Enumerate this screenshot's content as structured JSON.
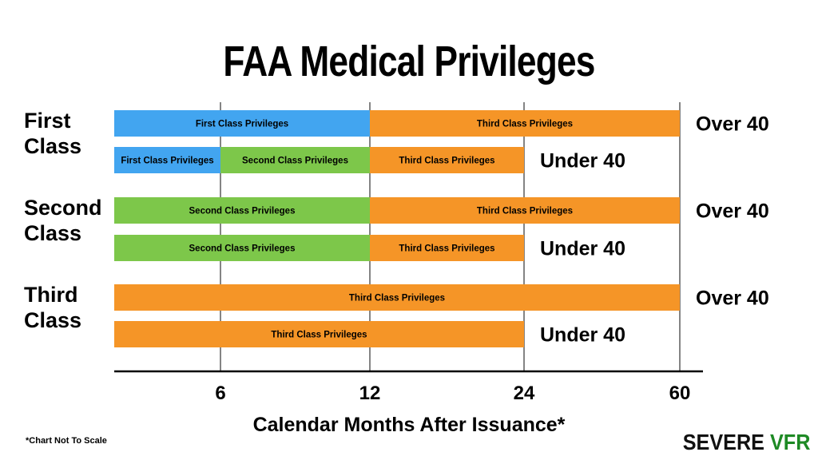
{
  "title": "FAA Medical Privileges",
  "footnote": "*Chart Not To Scale",
  "brand": {
    "part1": "SEVERE",
    "part2": "VFR",
    "color1": "#111111",
    "color2": "#1e8a25"
  },
  "chart_data": {
    "type": "bar",
    "orientation": "horizontal-stacked",
    "xlabel": "Calendar Months After Issuance*",
    "x_ticks": [
      6,
      12,
      24,
      60
    ],
    "x_scale": "not to scale (ordinal breakpoints)",
    "grid": true,
    "colors": {
      "First Class Privileges": "#42a5f0",
      "Second Class Privileges": "#7dc74a",
      "Third Class Privileges": "#f59527"
    },
    "groups": [
      {
        "label_lines": [
          "First",
          "Class"
        ],
        "rows": [
          {
            "age": "Over 40",
            "segments": [
              {
                "name": "First Class Privileges",
                "from": 0,
                "to": 12
              },
              {
                "name": "Third Class Privileges",
                "from": 12,
                "to": 60
              }
            ]
          },
          {
            "age": "Under 40",
            "segments": [
              {
                "name": "First Class Privileges",
                "from": 0,
                "to": 6
              },
              {
                "name": "Second Class Privileges",
                "from": 6,
                "to": 12
              },
              {
                "name": "Third Class Privileges",
                "from": 12,
                "to": 24
              }
            ]
          }
        ]
      },
      {
        "label_lines": [
          "Second",
          "Class"
        ],
        "rows": [
          {
            "age": "Over 40",
            "segments": [
              {
                "name": "Second Class Privileges",
                "from": 0,
                "to": 12
              },
              {
                "name": "Third Class Privileges",
                "from": 12,
                "to": 60
              }
            ]
          },
          {
            "age": "Under 40",
            "segments": [
              {
                "name": "Second Class Privileges",
                "from": 0,
                "to": 12
              },
              {
                "name": "Third Class Privileges",
                "from": 12,
                "to": 24
              }
            ]
          }
        ]
      },
      {
        "label_lines": [
          "Third",
          "Class"
        ],
        "rows": [
          {
            "age": "Over 40",
            "segments": [
              {
                "name": "Third Class Privileges",
                "from": 0,
                "to": 60
              }
            ]
          },
          {
            "age": "Under 40",
            "segments": [
              {
                "name": "Third Class Privileges",
                "from": 0,
                "to": 24
              }
            ]
          }
        ]
      }
    ]
  }
}
